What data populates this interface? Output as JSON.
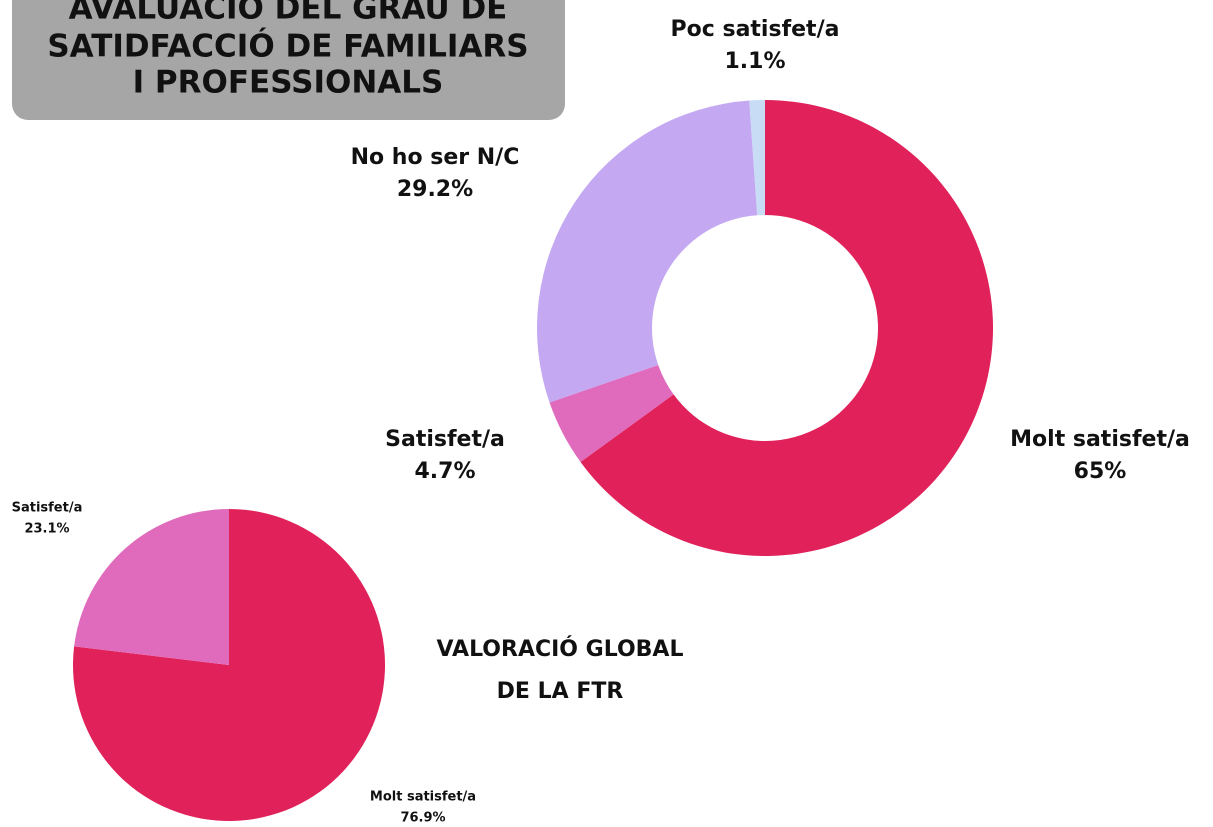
{
  "chart_data": [
    {
      "type": "donut",
      "title": [
        "AVALUACIÓ DEL GRAU DE",
        "SATIDFACCIÓ DE FAMILIARS",
        "I PROFESSIONALS"
      ],
      "categories": [
        "Molt satisfet/a",
        "Satisfet/a",
        "No ho ser N/C",
        "Poc satisfet/a"
      ],
      "values": [
        65,
        4.7,
        29.2,
        1.1
      ],
      "value_labels": [
        "65%",
        "4.7%",
        "29.2%",
        "1.1%"
      ],
      "colors": [
        "#e0215a",
        "#e06bbd",
        "#c4a8f2",
        "#c8dcf5"
      ]
    },
    {
      "type": "pie",
      "title": [
        "VALORACIÓ GLOBAL",
        "DE LA FTR"
      ],
      "categories": [
        "Molt satisfet/a",
        "Satisfet/a"
      ],
      "values": [
        76.9,
        23.1
      ],
      "value_labels": [
        "76.9%",
        "23.1%"
      ],
      "colors": [
        "#e0215a",
        "#e06bbd"
      ]
    }
  ]
}
